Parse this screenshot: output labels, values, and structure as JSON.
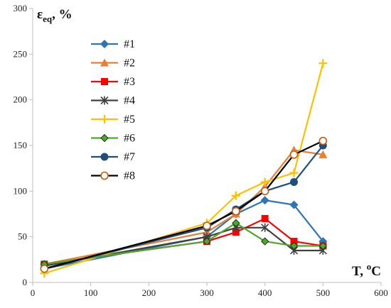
{
  "chart_data": {
    "type": "line",
    "ylabel": {
      "main": "ε",
      "sub": "eq",
      "rest": ", %"
    },
    "xlabel": {
      "main": "T, ",
      "sup": "o",
      "rest": "C"
    },
    "xlim": [
      0,
      600
    ],
    "ylim": [
      0,
      300
    ],
    "xticks": [
      0,
      100,
      200,
      300,
      400,
      500,
      600
    ],
    "yticks": [
      0,
      50,
      100,
      150,
      200,
      250,
      300
    ],
    "grid": false,
    "legend_position": "top-left",
    "series": [
      {
        "name": "#1",
        "color": "#2e75b6",
        "marker": "diamond",
        "x": [
          20,
          300,
          350,
          400,
          450,
          500
        ],
        "y": [
          15,
          50,
          75,
          90,
          85,
          45
        ]
      },
      {
        "name": "#2",
        "color": "#ed7d31",
        "marker": "triangle",
        "x": [
          20,
          300,
          350,
          400,
          450,
          500
        ],
        "y": [
          20,
          55,
          75,
          105,
          145,
          140
        ]
      },
      {
        "name": "#3",
        "color": "#ff0000",
        "marker": "square",
        "x": [
          20,
          300,
          350,
          400,
          450,
          500
        ],
        "y": [
          20,
          45,
          55,
          70,
          45,
          40
        ]
      },
      {
        "name": "#4",
        "color": "#404040",
        "marker": "star",
        "x": [
          20,
          300,
          350,
          400,
          450,
          500
        ],
        "y": [
          18,
          50,
          60,
          60,
          35,
          35
        ]
      },
      {
        "name": "#5",
        "color": "#ffc000",
        "marker": "plus",
        "x": [
          20,
          300,
          350,
          400,
          450,
          500
        ],
        "y": [
          10,
          65,
          95,
          110,
          120,
          240
        ]
      },
      {
        "name": "#6",
        "color": "#4ea72e",
        "marker": "diamond-dark",
        "x": [
          20,
          300,
          350,
          400,
          450,
          500
        ],
        "y": [
          20,
          45,
          65,
          45,
          40,
          40
        ]
      },
      {
        "name": "#7",
        "color": "#1f4e79",
        "marker": "circle",
        "x": [
          20,
          300,
          350,
          400,
          450,
          500
        ],
        "y": [
          15,
          60,
          80,
          100,
          110,
          150
        ]
      },
      {
        "name": "#8",
        "color": "#000000",
        "marker": "circle-open",
        "x": [
          20,
          300,
          350,
          400,
          450,
          500
        ],
        "y": [
          15,
          62,
          78,
          100,
          140,
          155
        ]
      }
    ]
  }
}
